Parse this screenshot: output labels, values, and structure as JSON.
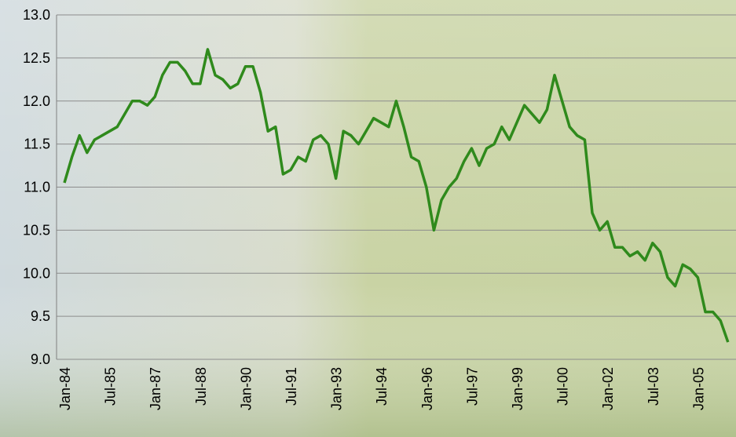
{
  "chart_data": {
    "type": "line",
    "categories": [
      "Jan-84",
      null,
      null,
      null,
      null,
      null,
      "Jul-85",
      null,
      null,
      null,
      null,
      null,
      "Jan-87",
      null,
      null,
      null,
      null,
      null,
      "Jul-88",
      null,
      null,
      null,
      null,
      null,
      "Jan-90",
      null,
      null,
      null,
      null,
      null,
      "Jul-91",
      null,
      null,
      null,
      null,
      null,
      "Jan-93",
      null,
      null,
      null,
      null,
      null,
      "Jul-94",
      null,
      null,
      null,
      null,
      null,
      "Jan-96",
      null,
      null,
      null,
      null,
      null,
      "Jul-97",
      null,
      null,
      null,
      null,
      null,
      "Jan-99",
      null,
      null,
      null,
      null,
      null,
      "Jul-00",
      null,
      null,
      null,
      null,
      null,
      "Jan-02",
      null,
      null,
      null,
      null,
      null,
      "Jul-03",
      null,
      null,
      null,
      null,
      null,
      "Jan-05",
      null,
      null,
      null,
      null
    ],
    "values": [
      11.05,
      11.35,
      11.6,
      11.4,
      11.55,
      11.6,
      11.65,
      11.7,
      11.85,
      12.0,
      12.0,
      11.95,
      12.05,
      12.3,
      12.45,
      12.45,
      12.35,
      12.2,
      12.2,
      12.6,
      12.3,
      12.25,
      12.15,
      12.2,
      12.4,
      12.4,
      12.1,
      11.65,
      11.7,
      11.15,
      11.2,
      11.35,
      11.3,
      11.55,
      11.6,
      11.5,
      11.1,
      11.65,
      11.6,
      11.5,
      11.65,
      11.8,
      11.75,
      11.7,
      12.0,
      11.7,
      11.35,
      11.3,
      11.0,
      10.5,
      10.85,
      11.0,
      11.1,
      11.3,
      11.45,
      11.25,
      11.45,
      11.5,
      11.7,
      11.55,
      11.75,
      11.95,
      11.85,
      11.75,
      11.9,
      12.3,
      12.0,
      11.7,
      11.6,
      11.55,
      10.7,
      10.5,
      10.6,
      10.3,
      10.3,
      10.2,
      10.25,
      10.15,
      10.35,
      10.25,
      9.95,
      9.85,
      10.1,
      10.05,
      9.95,
      9.55,
      9.55,
      9.45,
      9.2
    ],
    "color": "#2f8a1c",
    "ylim": [
      9.0,
      13.0
    ],
    "yticks": [
      {
        "value": 9.0,
        "label": "9.0"
      },
      9.5,
      {
        "value": 10.0,
        "label": "10.0"
      },
      10.5,
      {
        "value": 11.0,
        "label": "11.0"
      },
      11.5,
      {
        "value": 12.0,
        "label": "12.0"
      },
      12.5,
      {
        "value": 13.0,
        "label": "13.0"
      }
    ],
    "grid": true
  }
}
